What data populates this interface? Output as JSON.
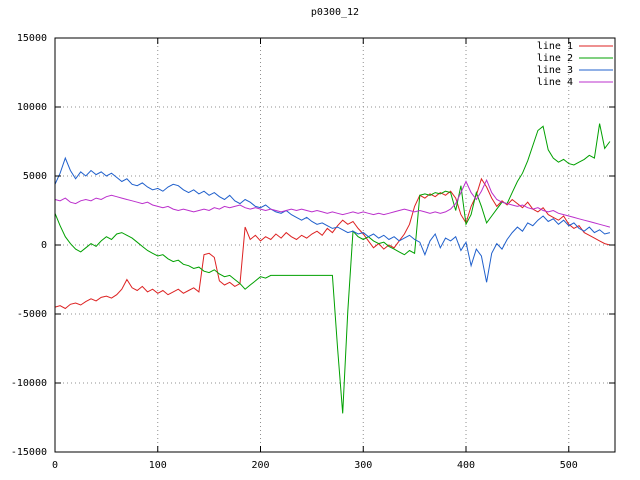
{
  "chart_data": {
    "type": "line",
    "title": "p0300_12",
    "xlabel": "",
    "ylabel": "",
    "xlim": [
      0,
      545
    ],
    "ylim": [
      -15000,
      15000
    ],
    "xticks": [
      0,
      100,
      200,
      300,
      400,
      500
    ],
    "yticks": [
      -15000,
      -10000,
      -5000,
      0,
      5000,
      10000,
      15000
    ],
    "grid": true,
    "grid_color": "#909090",
    "axis_color": "#000000",
    "legend_position": "top-right",
    "x_start": 0,
    "x_step": 5,
    "series": [
      {
        "name": "line 1",
        "color": "#dd2222",
        "values": [
          -4500,
          -4400,
          -4600,
          -4300,
          -4200,
          -4350,
          -4100,
          -3900,
          -4050,
          -3800,
          -3700,
          -3850,
          -3600,
          -3200,
          -2500,
          -3100,
          -3300,
          -3000,
          -3400,
          -3200,
          -3500,
          -3300,
          -3600,
          -3400,
          -3200,
          -3500,
          -3300,
          -3100,
          -3400,
          -700,
          -600,
          -900,
          -2600,
          -2900,
          -2700,
          -3000,
          -2800,
          1300,
          400,
          700,
          300,
          600,
          400,
          800,
          500,
          900,
          600,
          400,
          700,
          500,
          800,
          1000,
          700,
          1200,
          900,
          1400,
          1800,
          1500,
          1700,
          1200,
          800,
          300,
          -200,
          100,
          -300,
          0,
          -200,
          300,
          800,
          1500,
          2800,
          3600,
          3400,
          3700,
          3500,
          3800,
          3600,
          3900,
          3400,
          2200,
          1600,
          2800,
          3600,
          4800,
          4200,
          3400,
          2800,
          3200,
          2900,
          3300,
          3000,
          2700,
          3100,
          2600,
          2400,
          2700,
          2200,
          2000,
          1800,
          2100,
          1500,
          1200,
          1400,
          900,
          700,
          500,
          300,
          100,
          0
        ]
      },
      {
        "name": "line 2",
        "color": "#00a000",
        "values": [
          2300,
          1400,
          600,
          100,
          -300,
          -500,
          -200,
          100,
          -100,
          300,
          600,
          400,
          800,
          900,
          700,
          500,
          200,
          -100,
          -400,
          -600,
          -800,
          -700,
          -1000,
          -1200,
          -1100,
          -1400,
          -1500,
          -1700,
          -1600,
          -1900,
          -2000,
          -1800,
          -2100,
          -2300,
          -2200,
          -2500,
          -2800,
          -3200,
          -2900,
          -2600,
          -2300,
          -2400,
          -2200,
          -2200,
          -2200,
          -2200,
          -2200,
          -2200,
          -2200,
          -2200,
          -2200,
          -2200,
          -2200,
          -2200,
          -2200,
          -7500,
          -12200,
          -4800,
          1000,
          600,
          400,
          600,
          300,
          100,
          200,
          -100,
          -300,
          -500,
          -700,
          -400,
          -600,
          3600,
          3700,
          3600,
          3800,
          3700,
          3900,
          3800,
          2500,
          4300,
          1500,
          2200,
          3800,
          2800,
          1600,
          2100,
          2600,
          3100,
          3000,
          3800,
          4600,
          5200,
          6100,
          7200,
          8300,
          8600,
          6900,
          6300,
          6000,
          6200,
          5900,
          5800,
          6000,
          6200,
          6500,
          6300,
          8800,
          7000,
          7500
        ]
      },
      {
        "name": "line 3",
        "color": "#2060cc",
        "values": [
          4400,
          5200,
          6300,
          5400,
          4800,
          5300,
          5000,
          5400,
          5100,
          5300,
          5000,
          5200,
          4900,
          4600,
          4800,
          4400,
          4300,
          4500,
          4200,
          4000,
          4100,
          3900,
          4200,
          4400,
          4300,
          4000,
          3800,
          4000,
          3700,
          3900,
          3600,
          3800,
          3500,
          3300,
          3600,
          3200,
          3000,
          3300,
          3100,
          2800,
          2700,
          2900,
          2600,
          2400,
          2300,
          2500,
          2200,
          2000,
          1800,
          2000,
          1700,
          1500,
          1600,
          1400,
          1200,
          1300,
          1100,
          900,
          1000,
          800,
          900,
          600,
          800,
          500,
          700,
          400,
          600,
          300,
          500,
          700,
          400,
          200,
          -700,
          300,
          800,
          -200,
          500,
          300,
          600,
          -400,
          200,
          -1500,
          -300,
          -800,
          -2700,
          -600,
          100,
          -300,
          400,
          900,
          1300,
          1000,
          1600,
          1400,
          1800,
          2100,
          1700,
          1900,
          1500,
          1800,
          1400,
          1600,
          1200,
          1000,
          1300,
          900,
          1100,
          800,
          900
        ]
      },
      {
        "name": "line 4",
        "color": "#bb30cc",
        "values": [
          3300,
          3200,
          3400,
          3100,
          3000,
          3200,
          3300,
          3200,
          3400,
          3300,
          3500,
          3600,
          3500,
          3400,
          3300,
          3200,
          3100,
          3000,
          3100,
          2900,
          2800,
          2700,
          2800,
          2600,
          2500,
          2600,
          2500,
          2400,
          2500,
          2600,
          2500,
          2700,
          2600,
          2800,
          2700,
          2800,
          2900,
          2700,
          2600,
          2700,
          2600,
          2500,
          2600,
          2500,
          2400,
          2500,
          2600,
          2500,
          2600,
          2500,
          2400,
          2500,
          2400,
          2300,
          2400,
          2300,
          2200,
          2300,
          2400,
          2300,
          2400,
          2300,
          2200,
          2300,
          2200,
          2300,
          2400,
          2500,
          2600,
          2500,
          2400,
          2500,
          2400,
          2300,
          2400,
          2300,
          2400,
          2600,
          3000,
          3800,
          4600,
          3800,
          3300,
          3900,
          4700,
          3800,
          3300,
          3100,
          3000,
          2900,
          2800,
          2900,
          2700,
          2600,
          2700,
          2500,
          2400,
          2500,
          2300,
          2200,
          2100,
          2000,
          1900,
          1800,
          1700,
          1600,
          1500,
          1400,
          1300
        ]
      }
    ]
  }
}
